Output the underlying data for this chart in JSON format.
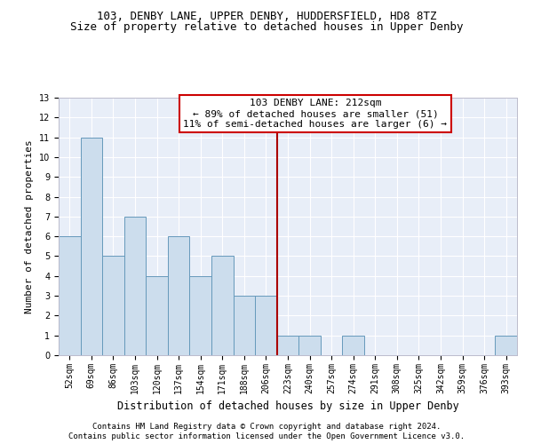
{
  "title1": "103, DENBY LANE, UPPER DENBY, HUDDERSFIELD, HD8 8TZ",
  "title2": "Size of property relative to detached houses in Upper Denby",
  "xlabel": "Distribution of detached houses by size in Upper Denby",
  "ylabel": "Number of detached properties",
  "categories": [
    "52sqm",
    "69sqm",
    "86sqm",
    "103sqm",
    "120sqm",
    "137sqm",
    "154sqm",
    "171sqm",
    "188sqm",
    "206sqm",
    "223sqm",
    "240sqm",
    "257sqm",
    "274sqm",
    "291sqm",
    "308sqm",
    "325sqm",
    "342sqm",
    "359sqm",
    "376sqm",
    "393sqm"
  ],
  "values": [
    6,
    11,
    5,
    7,
    4,
    6,
    4,
    5,
    3,
    3,
    1,
    1,
    0,
    1,
    0,
    0,
    0,
    0,
    0,
    0,
    1
  ],
  "bar_color": "#ccdded",
  "bar_edge_color": "#6699bb",
  "vline_x": 9.5,
  "vline_color": "#aa0000",
  "annotation_box_text": "103 DENBY LANE: 212sqm\n← 89% of detached houses are smaller (51)\n11% of semi-detached houses are larger (6) →",
  "ylim": [
    0,
    13
  ],
  "yticks": [
    0,
    1,
    2,
    3,
    4,
    5,
    6,
    7,
    8,
    9,
    10,
    11,
    12,
    13
  ],
  "footer1": "Contains HM Land Registry data © Crown copyright and database right 2024.",
  "footer2": "Contains public sector information licensed under the Open Government Licence v3.0.",
  "fig_background": "#ffffff",
  "ax_background": "#e8eef8",
  "grid_color": "#ffffff",
  "title1_fontsize": 9,
  "title2_fontsize": 9,
  "xlabel_fontsize": 8.5,
  "ylabel_fontsize": 8,
  "tick_fontsize": 7,
  "annotation_fontsize": 8,
  "footer_fontsize": 6.5
}
